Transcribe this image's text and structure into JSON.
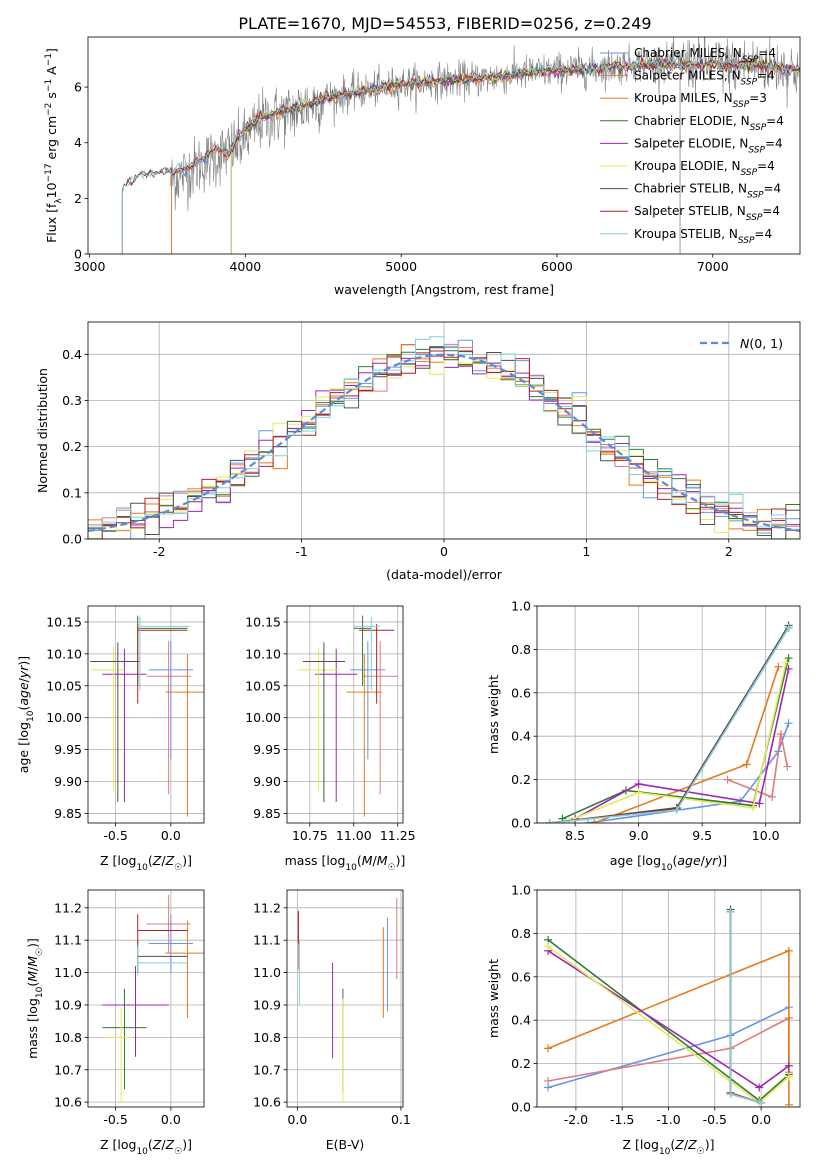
{
  "figure": {
    "title": "PLATE=1670, MJD=54553, FIBERID=0256, z=0.249"
  },
  "colors": {
    "s0": "#6495ed",
    "s1": "#e07b7b",
    "s2": "#e37b1c",
    "s3": "#2e7d32",
    "s4": "#9c27b0",
    "s5": "#e6e85a",
    "s6": "#505050",
    "s7": "#b22222",
    "s8": "#7fd0dc"
  },
  "chart_data": [
    {
      "id": "spectrum",
      "type": "line",
      "xlabel": "wavelength [Angstrom, rest frame]",
      "ylabel": "Flux [f_λ 10^-17 erg cm^-2 s^-1 A^-1]",
      "xlim": [
        2990,
        7560
      ],
      "ylim": [
        0,
        7.8
      ],
      "xticks": [
        3000,
        4000,
        5000,
        6000,
        7000
      ],
      "yticks": [
        0,
        2,
        4,
        6
      ],
      "grid": false,
      "legend_position": "top-right",
      "data_series": {
        "name": "",
        "color": "#808080",
        "x_range": [
          3520,
          7560
        ],
        "anchor_x": [
          3520,
          3700,
          3850,
          3950,
          4000,
          4100,
          4300,
          4500,
          4800,
          5000,
          5200,
          5500,
          5800,
          6000,
          6300,
          6600,
          7000,
          7300,
          7560
        ],
        "anchor_y": [
          2.6,
          3.2,
          3.6,
          3.9,
          4.1,
          4.8,
          5.1,
          5.6,
          5.9,
          6.1,
          6.2,
          6.3,
          6.5,
          6.6,
          6.7,
          6.9,
          6.8,
          6.8,
          6.6
        ]
      },
      "model_anchor_x": [
        3210,
        3300,
        3450,
        3600,
        3700,
        3800,
        3900,
        3950,
        4000,
        4100,
        4300,
        4500,
        4800,
        5000,
        5200,
        5500,
        5800,
        6000,
        6300,
        6600,
        7000,
        7300,
        7560
      ],
      "model_anchor_y": [
        2.3,
        2.8,
        2.9,
        3.0,
        3.3,
        3.8,
        3.6,
        4.2,
        4.5,
        4.9,
        5.2,
        5.6,
        5.9,
        6.1,
        6.2,
        6.3,
        6.5,
        6.6,
        6.7,
        6.8,
        6.8,
        6.8,
        6.6
      ],
      "series": [
        {
          "name": "Chabrier MILES, N_SSP=4",
          "label_main": "Chabrier MILES, N",
          "label_sub": "SSP",
          "label_tail": "=4",
          "color": "#6495ed",
          "start": 3525
        },
        {
          "name": "Salpeter MILES, N_SSP=4",
          "label_main": "Salpeter MILES, N",
          "label_sub": "SSP",
          "label_tail": "=4",
          "color": "#e07b7b",
          "start": 3525
        },
        {
          "name": "Kroupa MILES, N_SSP=3",
          "label_main": "Kroupa MILES, N",
          "label_sub": "SSP",
          "label_tail": "=3",
          "color": "#e37b1c",
          "start": 3525
        },
        {
          "name": "Chabrier ELODIE, N_SSP=4",
          "label_main": "Chabrier ELODIE, N",
          "label_sub": "SSP",
          "label_tail": "=4",
          "color": "#2e7d32",
          "start": 3910
        },
        {
          "name": "Salpeter ELODIE, N_SSP=4",
          "label_main": "Salpeter ELODIE, N",
          "label_sub": "SSP",
          "label_tail": "=4",
          "color": "#9c27b0",
          "start": 3910
        },
        {
          "name": "Kroupa ELODIE, N_SSP=4",
          "label_main": "Kroupa ELODIE, N",
          "label_sub": "SSP",
          "label_tail": "=4",
          "color": "#e6e85a",
          "start": 3910
        },
        {
          "name": "Chabrier STELIB, N_SSP=4",
          "label_main": "Chabrier STELIB, N",
          "label_sub": "SSP",
          "label_tail": "=4",
          "color": "#505050",
          "start": 3210
        },
        {
          "name": "Salpeter STELIB, N_SSP=4",
          "label_main": "Salpeter STELIB, N",
          "label_sub": "SSP",
          "label_tail": "=4",
          "color": "#b22222",
          "start": 3210
        },
        {
          "name": "Kroupa STELIB, N_SSP=4",
          "label_main": "Kroupa STELIB, N",
          "label_sub": "SSP",
          "label_tail": "=4",
          "color": "#7fd0dc",
          "start": 3210
        }
      ]
    },
    {
      "id": "residuals",
      "type": "bar",
      "xlabel": "(data-model)/error",
      "ylabel": "Normed distribution",
      "xlim": [
        -2.5,
        2.5
      ],
      "ylim": [
        0,
        0.47
      ],
      "xticks": [
        -2,
        -1,
        0,
        1,
        2
      ],
      "yticks": [
        0.0,
        0.1,
        0.2,
        0.3,
        0.4
      ],
      "grid": true,
      "legend_position": "top-right",
      "bin_width": 0.1,
      "gaussian": {
        "name": "N(0,1)",
        "color": "#5b8bd6"
      },
      "series_colors": [
        "#6495ed",
        "#e07b7b",
        "#e37b1c",
        "#2e7d32",
        "#9c27b0",
        "#e6e85a",
        "#505050",
        "#b22222",
        "#7fd0dc"
      ]
    },
    {
      "id": "age_vs_Z",
      "type": "scatter",
      "xlabel": "Z [log10(Z/Z☉)]",
      "ylabel": "age  [log10(age/yr)]",
      "xlim": [
        -0.75,
        0.3
      ],
      "ylim": [
        9.835,
        10.175
      ],
      "xticks": [
        -0.5,
        0.0
      ],
      "yticks": [
        9.85,
        9.9,
        9.95,
        10.0,
        10.05,
        10.1,
        10.15
      ],
      "grid": true,
      "points": [
        {
          "x": 0.0,
          "y": 10.075,
          "xerr": [
            0.2,
            0.2
          ],
          "yerr": [
            0.14,
            0.045
          ],
          "color": "#6495ed"
        },
        {
          "x": -0.02,
          "y": 10.065,
          "xerr": [
            0.2,
            0.2
          ],
          "yerr": [
            0.185,
            0.055
          ],
          "color": "#e07b7b"
        },
        {
          "x": 0.15,
          "y": 10.04,
          "xerr": [
            0.2,
            0.2
          ],
          "yerr": [
            0.195,
            0.06
          ],
          "color": "#e37b1c"
        },
        {
          "x": -0.3,
          "y": 10.14,
          "xerr": [
            0.0,
            0.45
          ],
          "yerr": [
            0.09,
            0.02
          ],
          "color": "#2e7d32"
        },
        {
          "x": -0.42,
          "y": 10.068,
          "xerr": [
            0.2,
            0.2
          ],
          "yerr": [
            0.2,
            0.04
          ],
          "color": "#9c27b0"
        },
        {
          "x": -0.52,
          "y": 10.075,
          "xerr": [
            0.2,
            0.1
          ],
          "yerr": [
            0.19,
            0.035
          ],
          "color": "#e6e85a"
        },
        {
          "x": -0.48,
          "y": 10.088,
          "xerr": [
            0.25,
            0.2
          ],
          "yerr": [
            0.22,
            0.03
          ],
          "color": "#505050"
        },
        {
          "x": -0.3,
          "y": 10.137,
          "xerr": [
            0.0,
            0.45
          ],
          "yerr": [
            0.115,
            0.01
          ],
          "color": "#b22222"
        },
        {
          "x": -0.28,
          "y": 10.143,
          "xerr": [
            0.0,
            0.45
          ],
          "yerr": [
            0.1,
            0.015
          ],
          "color": "#7fd0dc"
        }
      ]
    },
    {
      "id": "age_vs_mass",
      "type": "scatter",
      "xlabel": "mass [log10(M/M☉)]",
      "ylabel": "",
      "xlim": [
        10.62,
        11.28
      ],
      "ylim": [
        9.835,
        10.175
      ],
      "xticks": [
        10.75,
        11.0,
        11.25
      ],
      "xticklabels": [
        "10.75",
        "11.00",
        "11.25"
      ],
      "yticks": [
        9.85,
        9.9,
        9.95,
        10.0,
        10.05,
        10.1,
        10.15
      ],
      "grid": true,
      "points": [
        {
          "x": 11.08,
          "y": 10.075,
          "xerr": [
            0.1,
            0.1
          ],
          "yerr": [
            0.14,
            0.045
          ],
          "color": "#6495ed"
        },
        {
          "x": 11.15,
          "y": 10.065,
          "xerr": [
            0.1,
            0.1
          ],
          "yerr": [
            0.185,
            0.055
          ],
          "color": "#e07b7b"
        },
        {
          "x": 11.06,
          "y": 10.04,
          "xerr": [
            0.1,
            0.1
          ],
          "yerr": [
            0.195,
            0.06
          ],
          "color": "#e37b1c"
        },
        {
          "x": 11.05,
          "y": 10.14,
          "xerr": [
            0.05,
            0.05
          ],
          "yerr": [
            0.09,
            0.02
          ],
          "color": "#2e7d32"
        },
        {
          "x": 10.9,
          "y": 10.068,
          "xerr": [
            0.12,
            0.12
          ],
          "yerr": [
            0.2,
            0.04
          ],
          "color": "#9c27b0"
        },
        {
          "x": 10.8,
          "y": 10.075,
          "xerr": [
            0.12,
            0.12
          ],
          "yerr": [
            0.19,
            0.035
          ],
          "color": "#e6e85a"
        },
        {
          "x": 10.83,
          "y": 10.088,
          "xerr": [
            0.12,
            0.12
          ],
          "yerr": [
            0.22,
            0.03
          ],
          "color": "#505050"
        },
        {
          "x": 11.13,
          "y": 10.137,
          "xerr": [
            0.1,
            0.1
          ],
          "yerr": [
            0.115,
            0.01
          ],
          "color": "#b22222"
        },
        {
          "x": 11.1,
          "y": 10.143,
          "xerr": [
            0.1,
            0.05
          ],
          "yerr": [
            0.1,
            0.015
          ],
          "color": "#7fd0dc"
        }
      ]
    },
    {
      "id": "weight_vs_age",
      "type": "line",
      "xlabel": "age  [log10(age/yr)]",
      "ylabel": "mass weight",
      "xlim": [
        8.2,
        10.27
      ],
      "ylim": [
        0,
        1.0
      ],
      "xticks": [
        8.5,
        9.0,
        9.5,
        10.0
      ],
      "yticks": [
        0.0,
        0.2,
        0.4,
        0.6,
        0.8,
        1.0
      ],
      "grid": true,
      "series": [
        {
          "color": "#6495ed",
          "x": [
            8.6,
            9.8,
            10.1,
            10.18
          ],
          "y": [
            0.0,
            0.1,
            0.33,
            0.46
          ]
        },
        {
          "color": "#e07b7b",
          "x": [
            9.7,
            10.05,
            10.12,
            10.17
          ],
          "y": [
            0.2,
            0.12,
            0.41,
            0.26
          ]
        },
        {
          "color": "#e37b1c",
          "x": [
            8.65,
            9.85,
            10.1
          ],
          "y": [
            0.0,
            0.27,
            0.72
          ]
        },
        {
          "color": "#2e7d32",
          "x": [
            8.4,
            8.9,
            9.9,
            10.18
          ],
          "y": [
            0.02,
            0.15,
            0.08,
            0.76
          ]
        },
        {
          "color": "#9c27b0",
          "x": [
            8.5,
            9.0,
            9.95,
            10.18
          ],
          "y": [
            0.02,
            0.18,
            0.09,
            0.71
          ]
        },
        {
          "color": "#e6e85a",
          "x": [
            8.45,
            9.0,
            9.9,
            10.16
          ],
          "y": [
            0.01,
            0.14,
            0.07,
            0.74
          ]
        },
        {
          "color": "#505050",
          "x": [
            8.3,
            9.3,
            10.18
          ],
          "y": [
            0.0,
            0.07,
            0.91
          ]
        },
        {
          "color": "#b22222",
          "x": [
            8.3,
            9.3,
            10.18
          ],
          "y": [
            0.0,
            0.065,
            0.9
          ]
        },
        {
          "color": "#7fd0dc",
          "x": [
            8.3,
            9.3,
            10.18
          ],
          "y": [
            0.0,
            0.06,
            0.9
          ]
        }
      ]
    },
    {
      "id": "mass_vs_Z",
      "type": "scatter",
      "xlabel": "Z [log10(Z/Z☉)]",
      "ylabel": "mass [log10(M/M☉)]",
      "xlim": [
        -0.75,
        0.3
      ],
      "ylim": [
        10.585,
        11.255
      ],
      "xticks": [
        -0.5,
        0.0
      ],
      "yticks": [
        10.6,
        10.7,
        10.8,
        10.9,
        11.0,
        11.1,
        11.2
      ],
      "grid": true,
      "points": [
        {
          "x": 0.0,
          "y": 11.09,
          "xerr": [
            0.2,
            0.2
          ],
          "yerr": [
            0.09,
            0.09
          ],
          "color": "#6495ed"
        },
        {
          "x": -0.02,
          "y": 11.15,
          "xerr": [
            0.2,
            0.2
          ],
          "yerr": [
            0.09,
            0.09
          ],
          "color": "#e07b7b"
        },
        {
          "x": 0.15,
          "y": 11.06,
          "xerr": [
            0.2,
            0.2
          ],
          "yerr": [
            0.2,
            0.1
          ],
          "color": "#e37b1c"
        },
        {
          "x": -0.42,
          "y": 10.83,
          "xerr": [
            0.2,
            0.2
          ],
          "yerr": [
            0.19,
            0.12
          ],
          "color": "#2e7d32"
        },
        {
          "x": -0.32,
          "y": 10.9,
          "xerr": [
            0.3,
            0.3
          ],
          "yerr": [
            0.16,
            0.12
          ],
          "color": "#9c27b0"
        },
        {
          "x": -0.45,
          "y": 10.8,
          "xerr": [
            0.15,
            0.1
          ],
          "yerr": [
            0.2,
            0.09
          ],
          "color": "#e6e85a"
        },
        {
          "x": -0.3,
          "y": 11.05,
          "xerr": [
            0.0,
            0.45
          ],
          "yerr": [
            0.05,
            0.05
          ],
          "color": "#505050"
        },
        {
          "x": -0.3,
          "y": 11.13,
          "xerr": [
            0.0,
            0.45
          ],
          "yerr": [
            0.04,
            0.05
          ],
          "color": "#b22222"
        },
        {
          "x": -0.3,
          "y": 11.03,
          "xerr": [
            0.0,
            0.45
          ],
          "yerr": [
            0.04,
            0.05
          ],
          "color": "#7fd0dc"
        }
      ]
    },
    {
      "id": "mass_vs_EBV",
      "type": "scatter",
      "xlabel": "E(B-V)",
      "ylabel": "",
      "xlim": [
        -0.01,
        0.102
      ],
      "ylim": [
        10.585,
        11.255
      ],
      "xticks": [
        0.0,
        0.1
      ],
      "yticks": [
        10.6,
        10.7,
        10.8,
        10.9,
        11.0,
        11.1,
        11.2
      ],
      "grid": true,
      "points": [
        {
          "x": 0.001,
          "y": 11.1,
          "yerr": [
            0.09,
            0.09
          ],
          "color": "#e07b7b"
        },
        {
          "x": 0.001,
          "y": 11.13,
          "yerr": [
            0.04,
            0.06
          ],
          "color": "#b22222"
        },
        {
          "x": 0.002,
          "y": 11.0,
          "yerr": [
            0.1,
            0.1
          ],
          "color": "#7fd0dc"
        },
        {
          "x": 0.034,
          "y": 10.88,
          "yerr": [
            0.145,
            0.15
          ],
          "color": "#9c27b0"
        },
        {
          "x": 0.044,
          "y": 10.83,
          "yerr": [
            0.2,
            0.12
          ],
          "color": "#2e7d32"
        },
        {
          "x": 0.044,
          "y": 10.76,
          "yerr": [
            0.16,
            0.16
          ],
          "color": "#e6e85a"
        },
        {
          "x": 0.083,
          "y": 11.0,
          "yerr": [
            0.14,
            0.14
          ],
          "color": "#e37b1c"
        },
        {
          "x": 0.087,
          "y": 11.04,
          "yerr": [
            0.16,
            0.13
          ],
          "color": "#6495ed"
        },
        {
          "x": 0.096,
          "y": 11.11,
          "yerr": [
            0.13,
            0.12
          ],
          "color": "#e07b7b"
        }
      ]
    },
    {
      "id": "weight_vs_Z",
      "type": "line",
      "xlabel": "Z [log10(Z/Z☉)]",
      "ylabel": "mass weight",
      "xlim": [
        -2.42,
        0.42
      ],
      "ylim": [
        0,
        1.0
      ],
      "xticks": [
        -2.0,
        -1.5,
        -1.0,
        -0.5,
        0.0
      ],
      "yticks": [
        0.0,
        0.2,
        0.4,
        0.6,
        0.8,
        1.0
      ],
      "grid": true,
      "series": [
        {
          "color": "#6495ed",
          "x": [
            -2.3,
            -0.33,
            0.3
          ],
          "y": [
            0.09,
            0.33,
            0.46
          ]
        },
        {
          "color": "#e07b7b",
          "x": [
            -2.3,
            -0.33,
            0.3,
            0.3
          ],
          "y": [
            0.12,
            0.27,
            0.41,
            0.16
          ]
        },
        {
          "color": "#e37b1c",
          "x": [
            -2.3,
            0.3,
            0.3
          ],
          "y": [
            0.27,
            0.72,
            0.01
          ]
        },
        {
          "color": "#2e7d32",
          "x": [
            -2.3,
            -0.02,
            0.3
          ],
          "y": [
            0.77,
            0.03,
            0.15
          ]
        },
        {
          "color": "#9c27b0",
          "x": [
            -2.3,
            -0.02,
            0.3
          ],
          "y": [
            0.72,
            0.09,
            0.19
          ]
        },
        {
          "color": "#e6e85a",
          "x": [
            -2.3,
            -0.02,
            0.3
          ],
          "y": [
            0.74,
            0.02,
            0.14
          ]
        },
        {
          "color": "#505050",
          "x": [
            -0.33,
            -0.33,
            0.0
          ],
          "y": [
            0.91,
            0.06,
            0.02
          ]
        },
        {
          "color": "#b22222",
          "x": [
            -0.33,
            -0.33,
            0.0
          ],
          "y": [
            0.9,
            0.065,
            0.02
          ]
        },
        {
          "color": "#7fd0dc",
          "x": [
            -0.33,
            -0.33,
            0.0
          ],
          "y": [
            0.9,
            0.06,
            0.02
          ]
        }
      ]
    }
  ]
}
